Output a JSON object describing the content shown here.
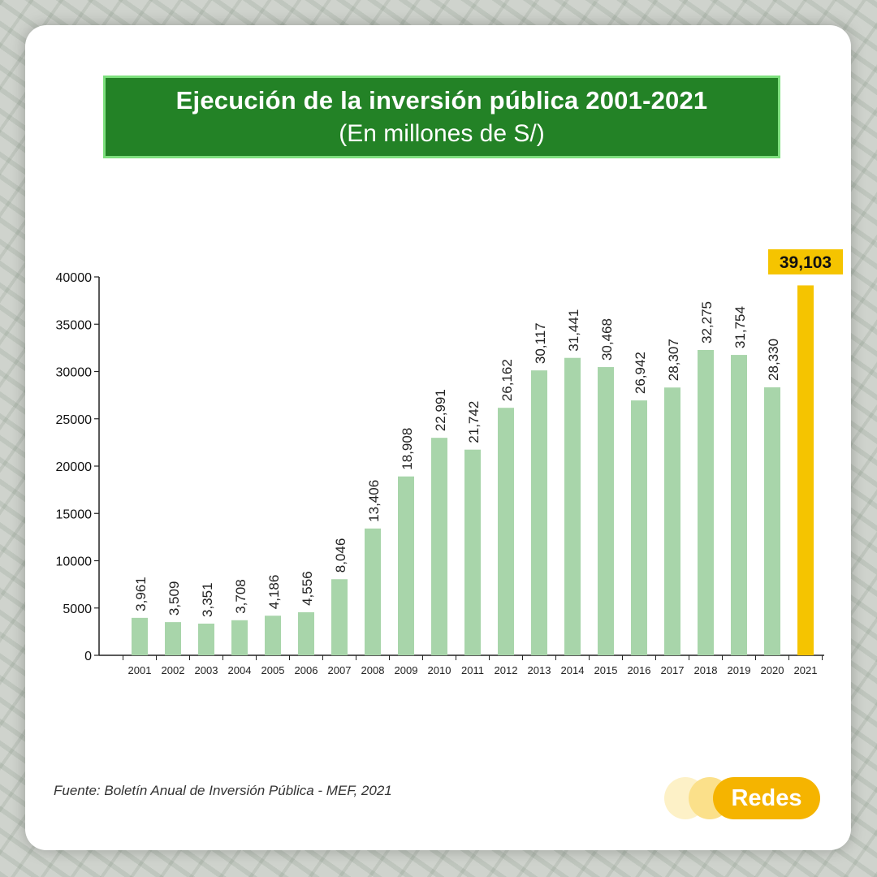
{
  "title": "Ejecución de la inversión pública 2001-2021",
  "subtitle": "(En millones de S/)",
  "source": "Fuente: Boletín Anual de Inversión Pública -  MEF, 2021",
  "logo_text": "Redes",
  "colors": {
    "bar": "#a8d5aa",
    "highlight_bar": "#f5c400",
    "highlight_label_bg": "#f5c400",
    "title_bg": "#238226",
    "title_border": "#7ee07e",
    "logo": "#f5b400"
  },
  "chart_data": {
    "type": "bar",
    "title": "Ejecución de la inversión pública 2001-2021",
    "subtitle": "(En millones de S/)",
    "categories": [
      "2001",
      "2002",
      "2003",
      "2004",
      "2005",
      "2006",
      "2007",
      "2008",
      "2009",
      "2010",
      "2011",
      "2012",
      "2013",
      "2014",
      "2015",
      "2016",
      "2017",
      "2018",
      "2019",
      "2020",
      "2021"
    ],
    "values": [
      3961,
      3509,
      3351,
      3708,
      4186,
      4556,
      8046,
      13406,
      18908,
      22991,
      21742,
      26162,
      30117,
      31441,
      30468,
      26942,
      28307,
      32275,
      31754,
      28330,
      39103
    ],
    "value_labels": [
      "3,961",
      "3,509",
      "3,351",
      "3,708",
      "4,186",
      "4,556",
      "8,046",
      "13,406",
      "18,908",
      "22,991",
      "21,742",
      "26,162",
      "30,117",
      "31,441",
      "30,468",
      "26,942",
      "28,307",
      "32,275",
      "31,754",
      "28,330",
      "39,103"
    ],
    "highlight": "2021",
    "yticks": [
      "0",
      "5000",
      "10000",
      "15000",
      "20000",
      "25000",
      "30000",
      "35000",
      "40000"
    ],
    "ylim": [
      0,
      40000
    ],
    "xlabel": "",
    "ylabel": "",
    "grid": false
  }
}
